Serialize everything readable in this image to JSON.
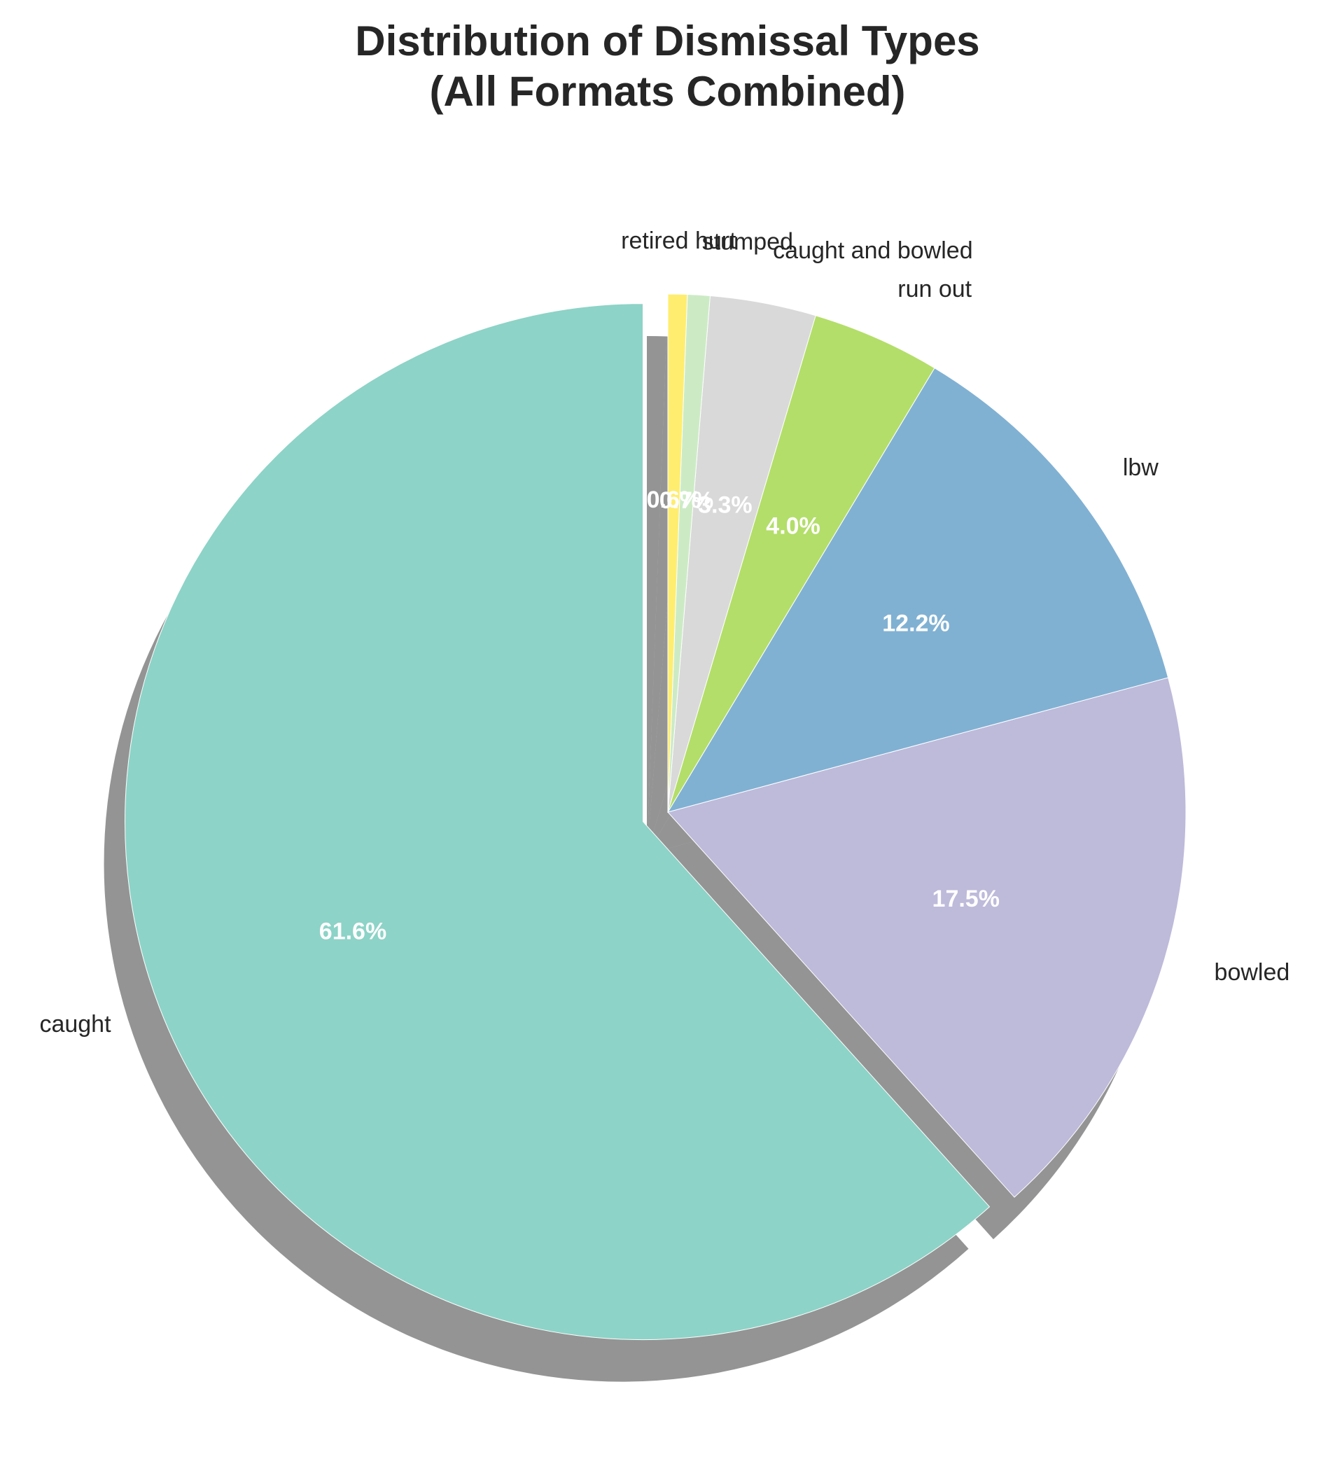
{
  "chart_data": {
    "type": "pie",
    "title": [
      "Distribution of Dismissal Types",
      "(All Formats Combined)"
    ],
    "start_angle_deg": 90,
    "direction": "counterclockwise",
    "slices": [
      {
        "label": "caught",
        "value": 61.6,
        "pct_label": "61.6%",
        "color": "#8dd3c7",
        "exploded": true
      },
      {
        "label": "bowled",
        "value": 17.5,
        "pct_label": "17.5%",
        "color": "#bebada",
        "exploded": false
      },
      {
        "label": "lbw",
        "value": 12.2,
        "pct_label": "12.2%",
        "color": "#80b1d3",
        "exploded": false
      },
      {
        "label": "run out",
        "value": 4.0,
        "pct_label": "4.0%",
        "color": "#b3de69",
        "exploded": false
      },
      {
        "label": "caught and bowled",
        "value": 3.3,
        "pct_label": "3.3%",
        "color": "#d9d9d9",
        "exploded": false
      },
      {
        "label": "stumped",
        "value": 0.7,
        "pct_label": "0.7%",
        "color": "#ccebc5",
        "exploded": false
      },
      {
        "label": "retired hurt",
        "value": 0.6,
        "pct_label": "0.6%",
        "color": "#ffed6f",
        "exploded": false
      }
    ],
    "shadow": true,
    "pct_label_color": "#ffffff",
    "label_color": "#262626"
  }
}
